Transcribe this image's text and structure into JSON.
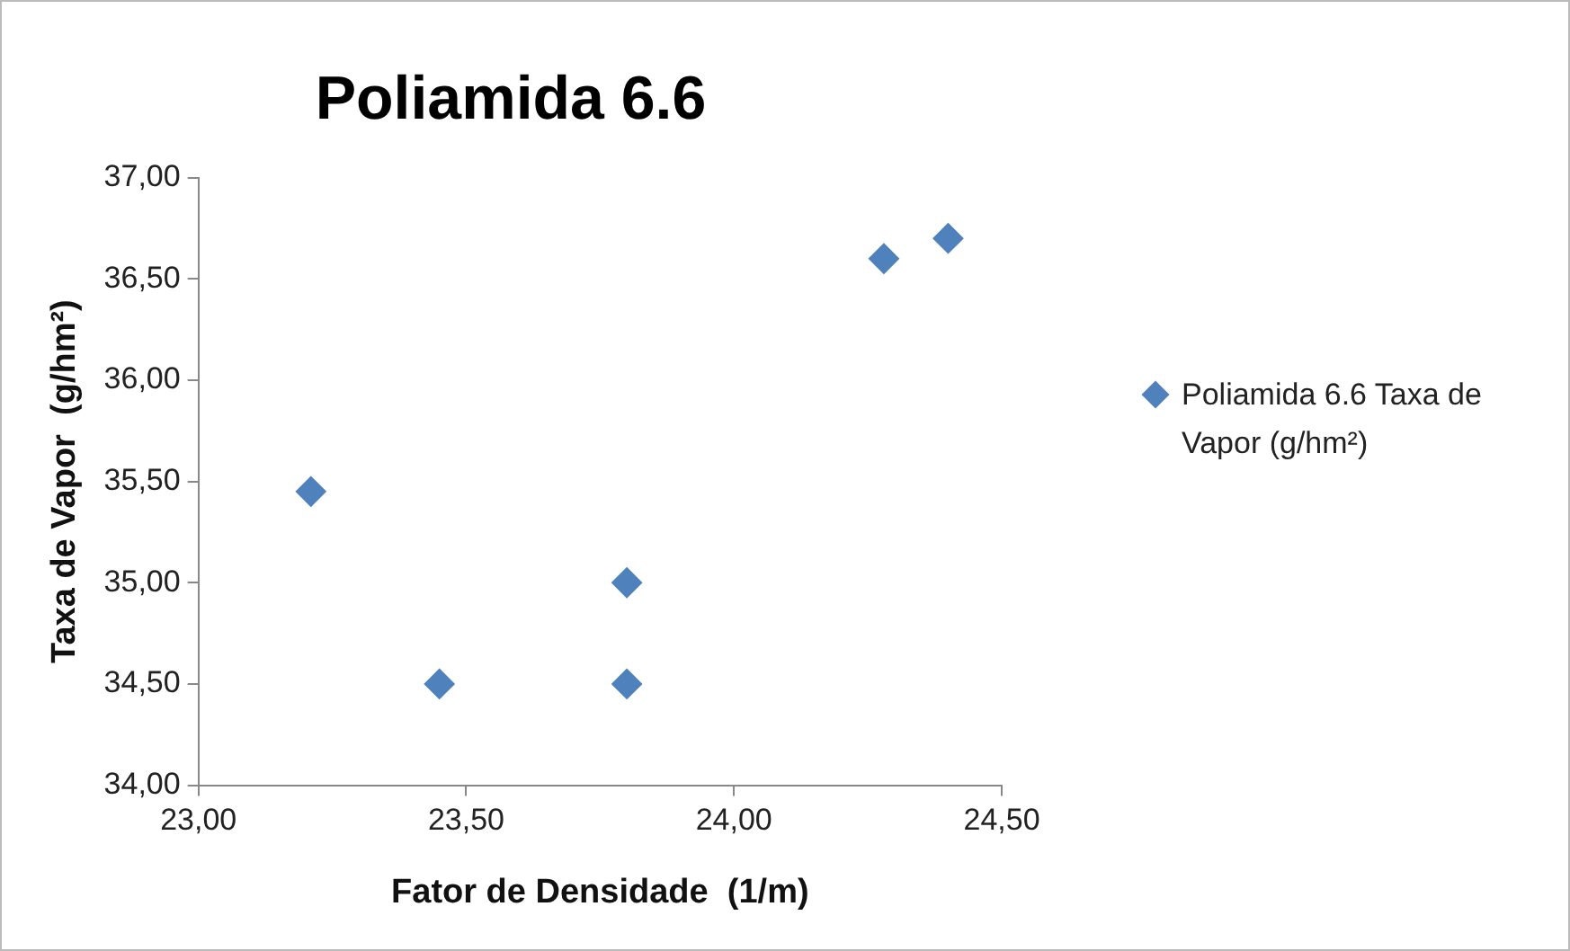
{
  "chart_data": {
    "type": "scatter",
    "title": "Poliamida 6.6",
    "xlabel": "Fator de Densidade  (1/m)",
    "ylabel": "Taxa de Vapor  (g/hm²)",
    "x": [
      23.21,
      23.45,
      23.8,
      23.8,
      24.28,
      24.4
    ],
    "series": [
      {
        "name": "Poliamida 6.6 Taxa de Vapor (g/hm²)",
        "color": "#4f81bd",
        "values": [
          35.45,
          34.5,
          35.0,
          34.5,
          36.6,
          36.7
        ]
      }
    ],
    "xlim": [
      23,
      24.5
    ],
    "xticks": [
      {
        "value": 23,
        "label": "23,00"
      },
      {
        "value": 23.5,
        "label": "23,50"
      },
      {
        "value": 24,
        "label": "24,00"
      },
      {
        "value": 24.5,
        "label": "24,50"
      }
    ],
    "ylim": [
      34,
      37
    ],
    "yticks": [
      {
        "value": 34,
        "label": "34,00"
      },
      {
        "value": 34.5,
        "label": "34,50"
      },
      {
        "value": 35,
        "label": "35,00"
      },
      {
        "value": 35.5,
        "label": "35,50"
      },
      {
        "value": 36,
        "label": "36,00"
      },
      {
        "value": 36.5,
        "label": "36,50"
      },
      {
        "value": 37,
        "label": "37,00"
      }
    ],
    "grid": false,
    "legend": "right",
    "marker": "diamond"
  }
}
